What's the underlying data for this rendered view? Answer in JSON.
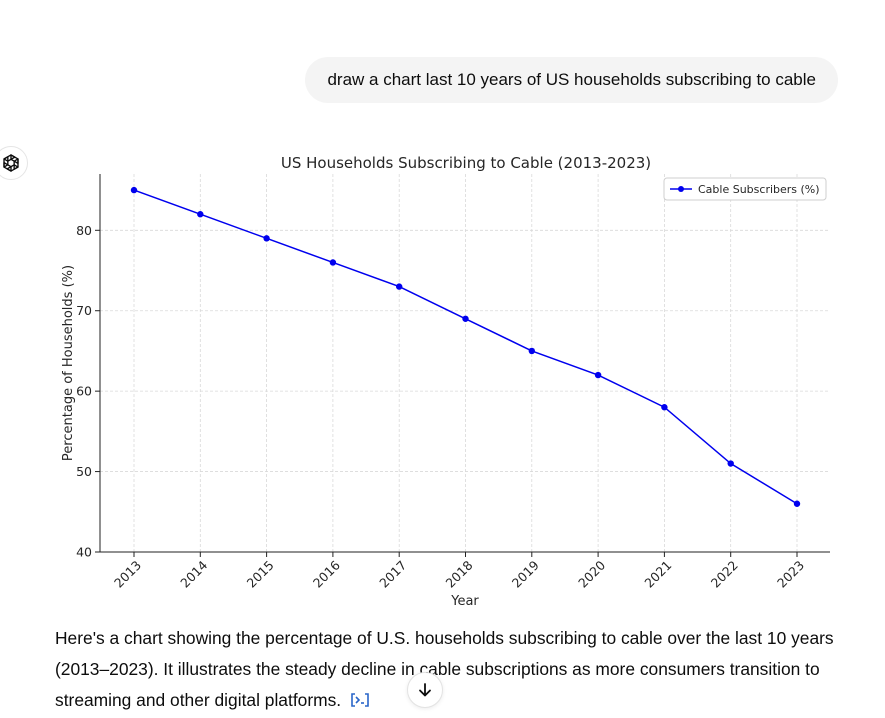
{
  "conversation": {
    "user_message": "draw a chart last 10 years of US households subscribing to cable",
    "assistant_message": "Here's a chart showing the percentage of U.S. households subscribing to cable over the last 10 years (2013–2023). It illustrates the steady decline in cable subscriptions as more consumers transition to streaming and other digital platforms."
  },
  "icons": {
    "assistant_avatar": "openai-logo-icon",
    "source": "code-bracket-icon",
    "scroll": "arrow-down-icon"
  },
  "colors": {
    "series": "#0000ee",
    "user_bubble": "#f4f4f4",
    "source_icon": "#2a66c9"
  },
  "chart_data": {
    "type": "line",
    "title": "US Households Subscribing to Cable (2013-2023)",
    "xlabel": "Year",
    "ylabel": "Percentage of Households (%)",
    "x": [
      "2013",
      "2014",
      "2015",
      "2016",
      "2017",
      "2018",
      "2019",
      "2020",
      "2021",
      "2022",
      "2023"
    ],
    "series": [
      {
        "name": "Cable Subscribers (%)",
        "values": [
          85,
          82,
          79,
          76,
          73,
          69,
          65,
          62,
          58,
          51,
          46
        ]
      }
    ],
    "ylim": [
      40,
      87
    ],
    "yticks": [
      40,
      50,
      60,
      70,
      80
    ],
    "grid": true,
    "legend_position": "top-right"
  }
}
